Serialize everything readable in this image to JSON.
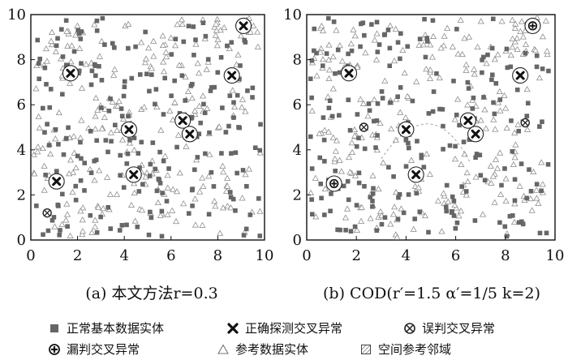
{
  "panels": [
    {
      "caption": "(a) 本文方法r=0.3",
      "chart_data": {
        "type": "scatter",
        "xlim": [
          0,
          10
        ],
        "ylim": [
          0,
          10
        ],
        "xticks": [
          0,
          2,
          4,
          6,
          8,
          10
        ],
        "yticks": [
          0,
          2,
          4,
          6,
          8,
          10
        ],
        "grid": false,
        "series": [
          {
            "name": "正确探测交叉异常",
            "marker": "x-circle",
            "points": [
              [
                1.7,
                7.4
              ],
              [
                9.1,
                9.5
              ],
              [
                8.6,
                7.3
              ],
              [
                4.2,
                4.9
              ],
              [
                6.5,
                5.3
              ],
              [
                6.8,
                4.7
              ],
              [
                4.4,
                2.9
              ],
              [
                1.1,
                2.6
              ]
            ]
          },
          {
            "name": "误判交叉异常",
            "marker": "otimes",
            "points": [
              [
                0.7,
                1.2
              ]
            ]
          },
          {
            "name": "漏判交叉异常",
            "marker": "oplus",
            "points": []
          }
        ]
      }
    },
    {
      "caption": "(b) COD(r′=1.5  α′=1/5  k=2)",
      "chart_data": {
        "type": "scatter",
        "xlim": [
          0,
          10
        ],
        "ylim": [
          0,
          10
        ],
        "xticks": [
          0,
          2,
          4,
          6,
          8,
          10
        ],
        "yticks": [
          0,
          2,
          4,
          6,
          8,
          10
        ],
        "grid": false,
        "series": [
          {
            "name": "正确探测交叉异常",
            "marker": "x-circle",
            "points": [
              [
                1.7,
                7.4
              ],
              [
                8.6,
                7.3
              ],
              [
                4.0,
                4.9
              ],
              [
                6.5,
                5.3
              ],
              [
                6.8,
                4.7
              ],
              [
                4.4,
                2.9
              ]
            ]
          },
          {
            "name": "误判交叉异常",
            "marker": "otimes",
            "points": [
              [
                2.3,
                5.0
              ],
              [
                8.8,
                5.2
              ]
            ]
          },
          {
            "name": "漏判交叉异常",
            "marker": "oplus",
            "points": [
              [
                9.1,
                9.5
              ],
              [
                1.1,
                2.5
              ]
            ]
          }
        ]
      }
    }
  ],
  "legend": [
    {
      "label": "正常基本数据实体",
      "marker": "filled-square"
    },
    {
      "label": "正确探测交叉异常",
      "marker": "x-circle"
    },
    {
      "label": "误判交叉异常",
      "marker": "otimes"
    },
    {
      "label": "漏判交叉异常",
      "marker": "oplus"
    },
    {
      "label": "参考数据实体",
      "marker": "open-triangle"
    },
    {
      "label": "空间参考邻域",
      "marker": "hatched-square"
    }
  ],
  "colors": {
    "square": "#666666",
    "triangle": "#888888",
    "axis": "#111111"
  }
}
